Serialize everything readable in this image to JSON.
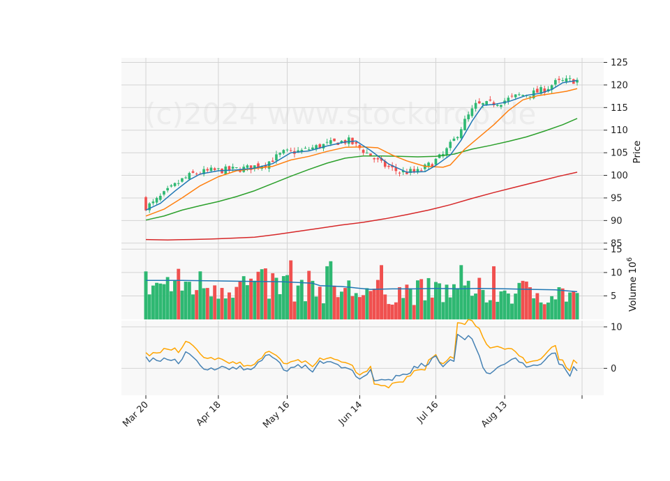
{
  "chart_data": {
    "type": "candlestick",
    "watermark": "(c)2024 www.stockdrop.de",
    "colors": {
      "up": "#2eb872",
      "down": "#f0504f",
      "panel_bg": "#f8f8f8",
      "grid": "#d3d3d3",
      "ma_short": "#1f77b4",
      "ma_mid": "#ff7f0e",
      "ma_long": "#2ca02c",
      "ma_200": "#d62728",
      "vol_ma": "#1f77b4",
      "osc_a": "#ffa500",
      "osc_b": "#4682b4"
    },
    "x_tick_labels": [
      {
        "label": "Mar 20",
        "index": 0
      },
      {
        "label": "Apr 18",
        "index": 20
      },
      {
        "label": "May 16",
        "index": 39
      },
      {
        "label": "Jun 14",
        "index": 59
      },
      {
        "label": "Jul 16",
        "index": 80
      },
      {
        "label": "Aug 13",
        "index": 99
      }
    ],
    "bar_count": 120,
    "price_panel": {
      "ylabel": "Price",
      "ylim": [
        84.5,
        126
      ],
      "yticks": [
        85,
        90,
        95,
        100,
        105,
        110,
        115,
        120,
        125
      ],
      "ma_short": [
        [
          0,
          92.3
        ],
        [
          4,
          93.8
        ],
        [
          8,
          96.5
        ],
        [
          12,
          99
        ],
        [
          15,
          100.3
        ],
        [
          20,
          101
        ],
        [
          25,
          101.2
        ],
        [
          30,
          101.6
        ],
        [
          35,
          102.6
        ],
        [
          40,
          105
        ],
        [
          45,
          105.4
        ],
        [
          50,
          106.5
        ],
        [
          55,
          107.4
        ],
        [
          58,
          107.6
        ],
        [
          62,
          105.5
        ],
        [
          67,
          102.5
        ],
        [
          72,
          100.7
        ],
        [
          77,
          100.8
        ],
        [
          80,
          102.2
        ],
        [
          84,
          104.5
        ],
        [
          87,
          107.8
        ],
        [
          90,
          112
        ],
        [
          93,
          115.5
        ],
        [
          96,
          115.7
        ],
        [
          100,
          116.3
        ],
        [
          105,
          117.7
        ],
        [
          109,
          118.2
        ],
        [
          112,
          119
        ],
        [
          115,
          120.5
        ],
        [
          119,
          121
        ]
      ],
      "ma_mid": [
        [
          0,
          91
        ],
        [
          5,
          92.5
        ],
        [
          10,
          95
        ],
        [
          15,
          97.7
        ],
        [
          20,
          99.7
        ],
        [
          25,
          101
        ],
        [
          30,
          101.5
        ],
        [
          35,
          102
        ],
        [
          40,
          103.4
        ],
        [
          45,
          104.2
        ],
        [
          50,
          105.3
        ],
        [
          55,
          106.2
        ],
        [
          60,
          106.3
        ],
        [
          64,
          106.1
        ],
        [
          68,
          104.5
        ],
        [
          72,
          103.2
        ],
        [
          77,
          102
        ],
        [
          82,
          101.8
        ],
        [
          84,
          102.3
        ],
        [
          88,
          105.8
        ],
        [
          92,
          108.5
        ],
        [
          96,
          111.2
        ],
        [
          100,
          114.3
        ],
        [
          104,
          116.7
        ],
        [
          108,
          117.6
        ],
        [
          112,
          118.1
        ],
        [
          116,
          118.6
        ],
        [
          119,
          119.2
        ]
      ],
      "ma_long": [
        [
          0,
          90.1
        ],
        [
          5,
          91
        ],
        [
          10,
          92.3
        ],
        [
          15,
          93.3
        ],
        [
          20,
          94.2
        ],
        [
          25,
          95.3
        ],
        [
          30,
          96.6
        ],
        [
          35,
          98.2
        ],
        [
          40,
          99.8
        ],
        [
          45,
          101.3
        ],
        [
          50,
          102.7
        ],
        [
          55,
          103.8
        ],
        [
          60,
          104.3
        ],
        [
          65,
          104.3
        ],
        [
          70,
          104.2
        ],
        [
          75,
          104.1
        ],
        [
          80,
          104.2
        ],
        [
          85,
          104.7
        ],
        [
          90,
          105.8
        ],
        [
          95,
          106.6
        ],
        [
          100,
          107.5
        ],
        [
          105,
          108.5
        ],
        [
          110,
          109.8
        ],
        [
          115,
          111.2
        ],
        [
          119,
          112.6
        ]
      ],
      "ma_200": [
        [
          0,
          85.8
        ],
        [
          6,
          85.7
        ],
        [
          12,
          85.8
        ],
        [
          18,
          85.9
        ],
        [
          24,
          86.1
        ],
        [
          30,
          86.3
        ],
        [
          36,
          86.9
        ],
        [
          42,
          87.6
        ],
        [
          48,
          88.3
        ],
        [
          54,
          89
        ],
        [
          60,
          89.6
        ],
        [
          66,
          90.4
        ],
        [
          72,
          91.3
        ],
        [
          78,
          92.3
        ],
        [
          84,
          93.5
        ],
        [
          90,
          94.9
        ],
        [
          96,
          96.2
        ],
        [
          102,
          97.4
        ],
        [
          108,
          98.6
        ],
        [
          114,
          99.8
        ],
        [
          119,
          100.7
        ]
      ]
    },
    "volume_panel": {
      "ylabel": "Volume",
      "ylabel_exponent": "10",
      "ylabel_power": "6",
      "ylim": [
        0,
        15.8
      ],
      "yticks": [
        5,
        10,
        15
      ],
      "volume_ma": [
        [
          0,
          8.3
        ],
        [
          10,
          8.3
        ],
        [
          20,
          8.2
        ],
        [
          30,
          8.1
        ],
        [
          38,
          8.0
        ],
        [
          46,
          7.7
        ],
        [
          48,
          7.2
        ],
        [
          54,
          7.0
        ],
        [
          62,
          6.4
        ],
        [
          68,
          6.5
        ],
        [
          74,
          6.5
        ],
        [
          80,
          6.6
        ],
        [
          86,
          6.5
        ],
        [
          92,
          6.6
        ],
        [
          100,
          6.5
        ],
        [
          106,
          6.4
        ],
        [
          113,
          6.3
        ],
        [
          116,
          6.1
        ],
        [
          119,
          5.9
        ]
      ]
    },
    "oscillator_panel": {
      "ylim": [
        -6.5,
        11.5
      ],
      "yticks": [
        0,
        10
      ],
      "series_a": [
        [
          0,
          3.8
        ],
        [
          1,
          3.0
        ],
        [
          2,
          3.8
        ],
        [
          3,
          3.7
        ],
        [
          4,
          3.8
        ],
        [
          5,
          4.8
        ],
        [
          6,
          4.6
        ],
        [
          7,
          4.4
        ],
        [
          8,
          4.9
        ],
        [
          9,
          3.8
        ],
        [
          10,
          5.0
        ],
        [
          11,
          6.5
        ],
        [
          12,
          6.2
        ],
        [
          13,
          5.5
        ],
        [
          14,
          4.6
        ],
        [
          15,
          3.5
        ],
        [
          16,
          2.6
        ],
        [
          17,
          2.4
        ],
        [
          18,
          2.6
        ],
        [
          19,
          2.1
        ],
        [
          20,
          2.5
        ],
        [
          21,
          2.2
        ],
        [
          22,
          1.7
        ],
        [
          23,
          1.2
        ],
        [
          24,
          1.6
        ],
        [
          25,
          1.1
        ],
        [
          26,
          1.5
        ],
        [
          27,
          0.5
        ],
        [
          28,
          0.7
        ],
        [
          29,
          0.6
        ],
        [
          30,
          1.0
        ],
        [
          31,
          2.0
        ],
        [
          32,
          2.5
        ],
        [
          33,
          3.8
        ],
        [
          34,
          4.1
        ],
        [
          35,
          3.6
        ],
        [
          36,
          3.1
        ],
        [
          37,
          2.3
        ],
        [
          38,
          1.2
        ],
        [
          39,
          1.1
        ],
        [
          40,
          1.6
        ],
        [
          41,
          1.8
        ],
        [
          42,
          2.1
        ],
        [
          43,
          1.4
        ],
        [
          44,
          1.8
        ],
        [
          45,
          1.1
        ],
        [
          46,
          0.4
        ],
        [
          47,
          1.3
        ],
        [
          48,
          2.5
        ],
        [
          49,
          2.1
        ],
        [
          50,
          2.4
        ],
        [
          51,
          2.6
        ],
        [
          52,
          2.2
        ],
        [
          53,
          2.0
        ],
        [
          54,
          1.5
        ],
        [
          55,
          1.4
        ],
        [
          56,
          1.1
        ],
        [
          57,
          0.7
        ],
        [
          58,
          -1.0
        ],
        [
          59,
          -1.6
        ],
        [
          60,
          -1.0
        ],
        [
          61,
          -0.7
        ],
        [
          62,
          0.5
        ],
        [
          63,
          -3.8
        ],
        [
          64,
          -3.9
        ],
        [
          65,
          -4.2
        ],
        [
          66,
          -4.2
        ],
        [
          67,
          -4.7
        ],
        [
          68,
          -3.6
        ],
        [
          69,
          -3.4
        ],
        [
          70,
          -3.3
        ],
        [
          71,
          -3.3
        ],
        [
          72,
          -2.0
        ],
        [
          73,
          -1.8
        ],
        [
          74,
          -0.6
        ],
        [
          75,
          -0.4
        ],
        [
          76,
          -0.3
        ],
        [
          77,
          -0.4
        ],
        [
          78,
          2.0
        ],
        [
          79,
          2.6
        ],
        [
          80,
          3.3
        ],
        [
          81,
          1.5
        ],
        [
          82,
          1.1
        ],
        [
          83,
          1.8
        ],
        [
          84,
          2.8
        ],
        [
          85,
          2.4
        ],
        [
          86,
          11.0
        ],
        [
          87,
          10.9
        ],
        [
          88,
          10.6
        ],
        [
          89,
          11.8
        ],
        [
          90,
          11.5
        ],
        [
          91,
          10.2
        ],
        [
          92,
          9.6
        ],
        [
          93,
          7.5
        ],
        [
          94,
          5.8
        ],
        [
          95,
          4.9
        ],
        [
          96,
          5.1
        ],
        [
          97,
          5.3
        ],
        [
          98,
          5.0
        ],
        [
          99,
          4.6
        ],
        [
          100,
          4.8
        ],
        [
          101,
          4.7
        ],
        [
          102,
          4.0
        ],
        [
          103,
          3.0
        ],
        [
          104,
          2.6
        ],
        [
          105,
          1.3
        ],
        [
          106,
          1.6
        ],
        [
          107,
          1.8
        ],
        [
          108,
          1.9
        ],
        [
          109,
          2.3
        ],
        [
          110,
          3.2
        ],
        [
          111,
          4.2
        ],
        [
          112,
          5.1
        ],
        [
          113,
          5.5
        ],
        [
          114,
          2.1
        ],
        [
          115,
          2.0
        ],
        [
          116,
          0.2
        ],
        [
          117,
          -0.6
        ],
        [
          118,
          2.0
        ],
        [
          119,
          1.2
        ]
      ],
      "series_b": [
        [
          0,
          2.8
        ],
        [
          1,
          1.6
        ],
        [
          2,
          2.5
        ],
        [
          3,
          1.9
        ],
        [
          4,
          1.7
        ],
        [
          5,
          2.5
        ],
        [
          6,
          2.1
        ],
        [
          7,
          1.9
        ],
        [
          8,
          2.2
        ],
        [
          9,
          1.1
        ],
        [
          10,
          2.2
        ],
        [
          11,
          4.0
        ],
        [
          12,
          3.5
        ],
        [
          13,
          2.7
        ],
        [
          14,
          1.9
        ],
        [
          15,
          0.7
        ],
        [
          16,
          -0.2
        ],
        [
          17,
          -0.4
        ],
        [
          18,
          0.1
        ],
        [
          19,
          -0.4
        ],
        [
          20,
          0.0
        ],
        [
          21,
          0.5
        ],
        [
          22,
          0.2
        ],
        [
          23,
          -0.3
        ],
        [
          24,
          0.3
        ],
        [
          25,
          -0.2
        ],
        [
          26,
          0.6
        ],
        [
          27,
          -0.4
        ],
        [
          28,
          -0.1
        ],
        [
          29,
          -0.3
        ],
        [
          30,
          0.3
        ],
        [
          31,
          1.5
        ],
        [
          32,
          1.9
        ],
        [
          33,
          3.1
        ],
        [
          34,
          3.3
        ],
        [
          35,
          2.6
        ],
        [
          36,
          2.1
        ],
        [
          37,
          1.3
        ],
        [
          38,
          -0.4
        ],
        [
          39,
          -0.7
        ],
        [
          40,
          0.2
        ],
        [
          41,
          0.3
        ],
        [
          42,
          0.9
        ],
        [
          43,
          0.1
        ],
        [
          44,
          0.8
        ],
        [
          45,
          -0.2
        ],
        [
          46,
          -0.9
        ],
        [
          47,
          0.5
        ],
        [
          48,
          1.8
        ],
        [
          49,
          1.2
        ],
        [
          50,
          1.6
        ],
        [
          51,
          1.6
        ],
        [
          52,
          1.2
        ],
        [
          53,
          0.9
        ],
        [
          54,
          0.1
        ],
        [
          55,
          0.2
        ],
        [
          56,
          -0.1
        ],
        [
          57,
          -0.5
        ],
        [
          58,
          -2.0
        ],
        [
          59,
          -2.6
        ],
        [
          60,
          -2.0
        ],
        [
          61,
          -1.5
        ],
        [
          62,
          -0.3
        ],
        [
          63,
          -3.0
        ],
        [
          64,
          -2.9
        ],
        [
          65,
          -2.7
        ],
        [
          66,
          -2.8
        ],
        [
          67,
          -2.7
        ],
        [
          68,
          -2.9
        ],
        [
          69,
          -1.7
        ],
        [
          70,
          -1.8
        ],
        [
          71,
          -1.4
        ],
        [
          72,
          -1.5
        ],
        [
          73,
          -1.1
        ],
        [
          74,
          0.5
        ],
        [
          75,
          0.1
        ],
        [
          76,
          1.2
        ],
        [
          77,
          0.5
        ],
        [
          78,
          1.0
        ],
        [
          79,
          2.5
        ],
        [
          80,
          3.0
        ],
        [
          81,
          1.4
        ],
        [
          82,
          0.4
        ],
        [
          83,
          1.3
        ],
        [
          84,
          2.1
        ],
        [
          85,
          1.7
        ],
        [
          86,
          8.2
        ],
        [
          87,
          7.6
        ],
        [
          88,
          6.9
        ],
        [
          89,
          7.9
        ],
        [
          90,
          7.1
        ],
        [
          91,
          5.0
        ],
        [
          92,
          3.0
        ],
        [
          93,
          0.2
        ],
        [
          94,
          -1.1
        ],
        [
          95,
          -1.3
        ],
        [
          96,
          -0.6
        ],
        [
          97,
          0.2
        ],
        [
          98,
          0.7
        ],
        [
          99,
          1.0
        ],
        [
          100,
          1.6
        ],
        [
          101,
          2.2
        ],
        [
          102,
          2.5
        ],
        [
          103,
          1.5
        ],
        [
          104,
          1.3
        ],
        [
          105,
          0.3
        ],
        [
          106,
          0.5
        ],
        [
          107,
          0.8
        ],
        [
          108,
          0.7
        ],
        [
          109,
          1.0
        ],
        [
          110,
          1.9
        ],
        [
          111,
          2.9
        ],
        [
          112,
          3.6
        ],
        [
          113,
          3.7
        ],
        [
          114,
          1.0
        ],
        [
          115,
          0.8
        ],
        [
          116,
          -0.6
        ],
        [
          117,
          -1.9
        ],
        [
          118,
          0.4
        ],
        [
          119,
          -0.6
        ]
      ]
    }
  }
}
